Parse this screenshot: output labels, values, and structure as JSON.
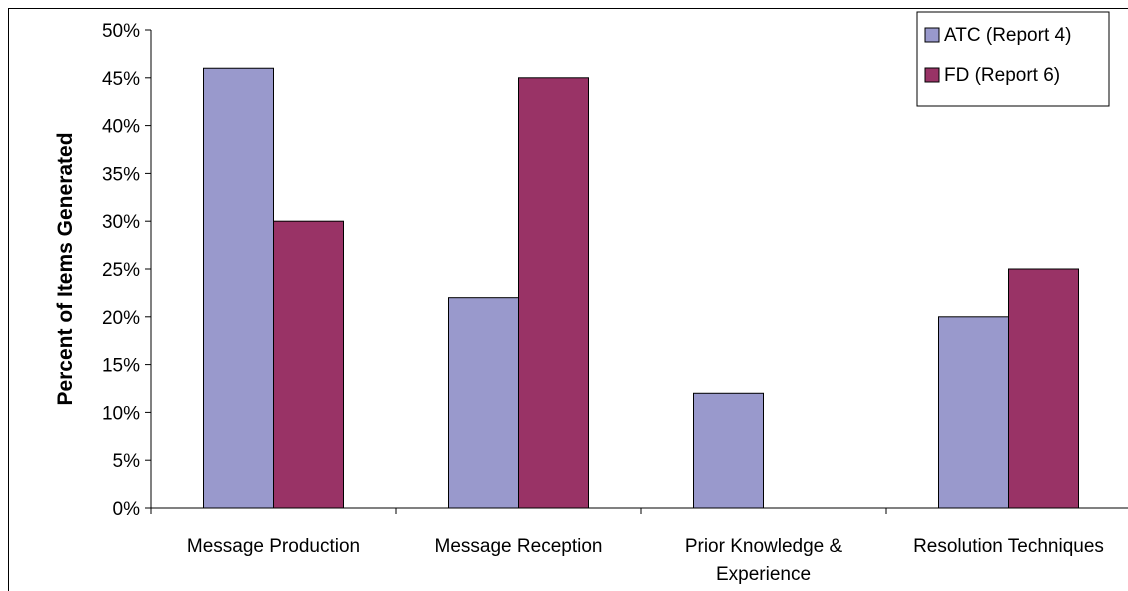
{
  "chart_data": {
    "type": "bar",
    "categories": [
      "Message Production",
      "Message Reception",
      "Prior Knowledge & Experience",
      "Resolution Techniques"
    ],
    "category_lines": [
      [
        "Message Production"
      ],
      [
        "Message Reception"
      ],
      [
        "Prior Knowledge &",
        "Experience"
      ],
      [
        "Resolution Techniques"
      ]
    ],
    "series": [
      {
        "name": "ATC (Report 4)",
        "values": [
          46,
          22,
          12,
          20
        ],
        "color": "#9999cc"
      },
      {
        "name": "FD (Report 6)",
        "values": [
          30,
          45,
          0,
          25
        ],
        "color": "#993366"
      }
    ],
    "ylabel": "Percent of Items Generated",
    "xlabel": "",
    "ylim": [
      0,
      50
    ],
    "yticks": [
      "0%",
      "5%",
      "10%",
      "15%",
      "20%",
      "25%",
      "30%",
      "35%",
      "40%",
      "45%",
      "50%"
    ],
    "grid": false,
    "legend_position": "top-right"
  }
}
